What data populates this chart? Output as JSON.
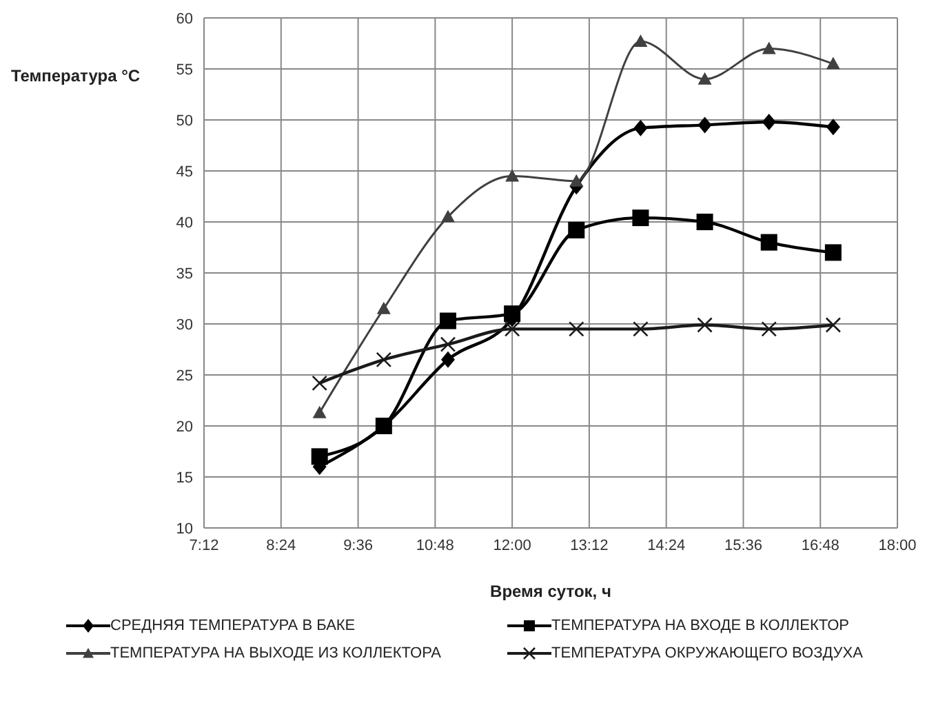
{
  "chart_data": {
    "type": "line",
    "xlabel": "Время суток, ч",
    "ylabel": "Температура °C",
    "x": [
      9,
      10,
      11,
      12,
      13,
      14,
      15,
      16,
      17
    ],
    "xlim": [
      7.2,
      18
    ],
    "xticks": [
      {
        "value": 7.2,
        "label": "7:12"
      },
      {
        "value": 8.4,
        "label": "8:24"
      },
      {
        "value": 9.6,
        "label": "9:36"
      },
      {
        "value": 10.8,
        "label": "10:48"
      },
      {
        "value": 12,
        "label": "12:00"
      },
      {
        "value": 13.2,
        "label": "13:12"
      },
      {
        "value": 14.4,
        "label": "14:24"
      },
      {
        "value": 15.6,
        "label": "15:36"
      },
      {
        "value": 16.8,
        "label": "16:48"
      },
      {
        "value": 18,
        "label": "18:00"
      }
    ],
    "ylim": [
      10,
      60
    ],
    "yticks": [
      10,
      15,
      20,
      25,
      30,
      35,
      40,
      45,
      50,
      55,
      60
    ],
    "grid": true,
    "legend": "bottom",
    "series": [
      {
        "name": "СРЕДНЯЯ ТЕМПЕРАТУРА В БАКЕ",
        "color": "#000000",
        "marker": "diamond",
        "values": [
          16,
          20,
          26.5,
          30.5,
          43.5,
          49.2,
          49.5,
          49.8,
          49.3
        ]
      },
      {
        "name": "ТЕМПЕРАТУРА НА ВХОДЕ В КОЛЛЕКТОР",
        "color": "#000000",
        "marker": "square",
        "values": [
          17,
          20,
          30.3,
          31,
          39.2,
          40.4,
          40,
          38,
          37
        ]
      },
      {
        "name": "ТЕМПЕРАТУРА НА ВЫХОДЕ ИЗ КОЛЛЕКТОРА",
        "color": "#404040",
        "marker": "triangle",
        "values": [
          21.3,
          31.5,
          40.5,
          44.5,
          44,
          57.7,
          54,
          57,
          55.5
        ]
      },
      {
        "name": "ТЕМПЕРАТУРА ОКРУЖАЮЩЕГО ВОЗДУХА",
        "color": "#1a1a1a",
        "marker": "cross",
        "values": [
          24.2,
          26.5,
          28,
          29.5,
          29.5,
          29.5,
          29.9,
          29.5,
          29.9
        ]
      }
    ]
  }
}
